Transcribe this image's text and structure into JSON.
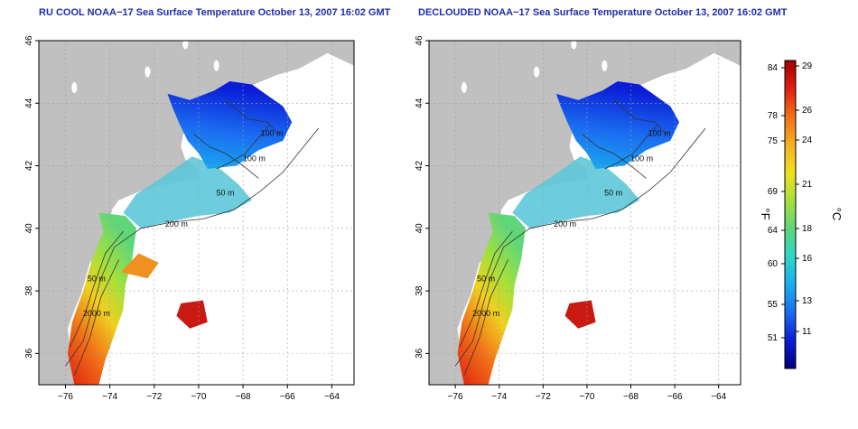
{
  "panels": [
    {
      "title": "RU COOL NOAA−17 Sea Surface Temperature October 13, 2007 16:02 GMT"
    },
    {
      "title": "DECLOUDED NOAA−17 Sea Surface Temperature October 13, 2007 16:02 GMT"
    }
  ],
  "x_ticks": [
    "−76",
    "−74",
    "−72",
    "−70",
    "−68",
    "−66",
    "−64"
  ],
  "y_ticks": [
    "46",
    "44",
    "42",
    "40",
    "38",
    "36"
  ],
  "contour_labels": {
    "left": [
      "100 m",
      "100 m",
      "50 m",
      "200 m",
      "50 m",
      "2000 m"
    ],
    "right": [
      "100 m",
      "100 m",
      "50 m",
      "200 m",
      "50 m",
      "2000 m"
    ]
  },
  "colorbar": {
    "f_label": "°F",
    "c_label": "°C",
    "f_ticks": [
      "84",
      "78",
      "75",
      "69",
      "64",
      "60",
      "55",
      "51"
    ],
    "c_ticks": [
      "29",
      "26",
      "24",
      "21",
      "18",
      "16",
      "13",
      "11"
    ],
    "colors": [
      "#00007a",
      "#0a1cd6",
      "#1a6cf0",
      "#1aaef0",
      "#2ed6c8",
      "#5ed67a",
      "#a6e03a",
      "#f0e020",
      "#f5b020",
      "#f07018",
      "#e02010",
      "#a00000"
    ]
  },
  "colors": {
    "land": "#c0c0c0",
    "ocean": "#ffffff",
    "title": "#1f2fa8",
    "grid": "#a0a0a0"
  }
}
